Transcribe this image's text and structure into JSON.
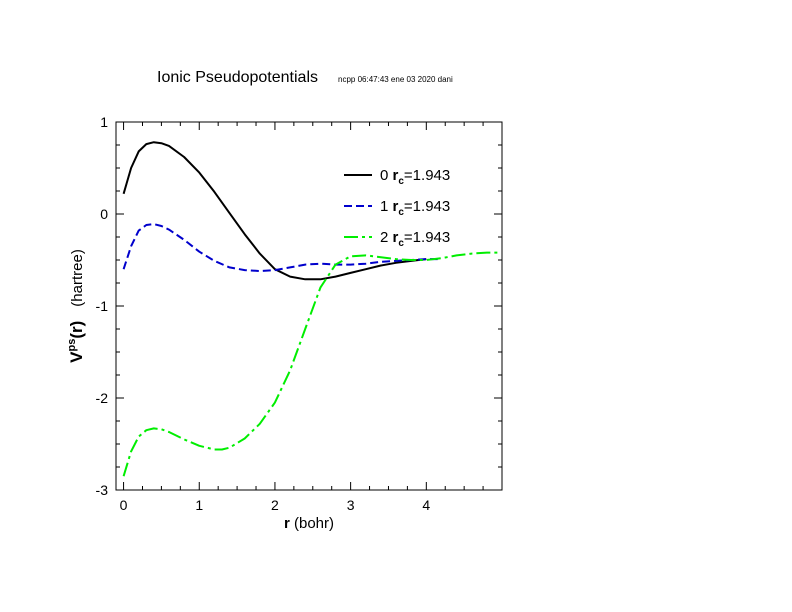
{
  "chart_data": {
    "type": "line",
    "title": "Ionic Pseudopotentials",
    "subtitle": "ncpp 06:47:43 ene 03 2020 dani",
    "xlabel": {
      "bold": "r",
      "rest": " (bohr)"
    },
    "ylabel": {
      "main": "V",
      "sup": "ps",
      "arg": "(r)",
      "unit": "(hartree)"
    },
    "xlim": [
      -0.1,
      5.0
    ],
    "ylim": [
      -3,
      1
    ],
    "xticks": [
      {
        "value": 0,
        "label": "0"
      },
      {
        "value": 1,
        "label": "1"
      },
      {
        "value": 2,
        "label": "2"
      },
      {
        "value": 3,
        "label": "3"
      },
      {
        "value": 4,
        "label": "4"
      }
    ],
    "yticks": [
      {
        "value": 1,
        "label": "1"
      },
      {
        "value": 0,
        "label": "0"
      },
      {
        "value": -1,
        "label": "-1"
      },
      {
        "value": -2,
        "label": "-2"
      },
      {
        "value": -3,
        "label": "-3"
      }
    ],
    "legend_position": "top-right",
    "series": [
      {
        "name": "0",
        "legend_r": "r",
        "legend_sub": "c",
        "legend_val": "=1.943",
        "color": "#000000",
        "dash": "",
        "x": [
          0.0,
          0.1,
          0.2,
          0.3,
          0.4,
          0.5,
          0.6,
          0.8,
          1.0,
          1.2,
          1.4,
          1.6,
          1.8,
          2.0,
          2.2,
          2.4,
          2.6,
          2.8,
          3.0,
          3.2,
          3.4,
          3.6,
          3.8,
          4.0
        ],
        "y": [
          0.22,
          0.5,
          0.68,
          0.76,
          0.78,
          0.77,
          0.74,
          0.62,
          0.45,
          0.24,
          0.01,
          -0.22,
          -0.43,
          -0.6,
          -0.68,
          -0.71,
          -0.71,
          -0.68,
          -0.64,
          -0.6,
          -0.56,
          -0.53,
          -0.51,
          -0.49
        ]
      },
      {
        "name": "1",
        "legend_r": "r",
        "legend_sub": "c",
        "legend_val": "=1.943",
        "color": "#0000cc",
        "dash": "8,4",
        "x": [
          0.0,
          0.1,
          0.2,
          0.3,
          0.4,
          0.5,
          0.6,
          0.8,
          1.0,
          1.2,
          1.4,
          1.6,
          1.8,
          2.0,
          2.2,
          2.4,
          2.6,
          2.8,
          3.0,
          3.2,
          3.4,
          3.6,
          3.8,
          4.0,
          4.15
        ],
        "y": [
          -0.6,
          -0.35,
          -0.18,
          -0.12,
          -0.11,
          -0.13,
          -0.17,
          -0.28,
          -0.41,
          -0.51,
          -0.58,
          -0.61,
          -0.62,
          -0.61,
          -0.58,
          -0.55,
          -0.54,
          -0.55,
          -0.55,
          -0.54,
          -0.52,
          -0.51,
          -0.5,
          -0.49,
          -0.49
        ]
      },
      {
        "name": "2",
        "legend_r": "r",
        "legend_sub": "c",
        "legend_val": "=1.943",
        "color": "#00ee00",
        "dash": "14,4,3,4",
        "x": [
          0.0,
          0.1,
          0.2,
          0.3,
          0.4,
          0.5,
          0.6,
          0.8,
          1.0,
          1.2,
          1.3,
          1.4,
          1.6,
          1.8,
          2.0,
          2.2,
          2.4,
          2.6,
          2.8,
          3.0,
          3.2,
          3.4,
          3.6,
          3.8,
          4.0,
          4.2,
          4.4,
          4.6,
          4.8,
          4.95
        ],
        "y": [
          -2.85,
          -2.58,
          -2.42,
          -2.35,
          -2.33,
          -2.34,
          -2.37,
          -2.45,
          -2.52,
          -2.56,
          -2.56,
          -2.54,
          -2.44,
          -2.28,
          -2.05,
          -1.7,
          -1.25,
          -0.8,
          -0.55,
          -0.46,
          -0.45,
          -0.47,
          -0.49,
          -0.5,
          -0.5,
          -0.48,
          -0.45,
          -0.43,
          -0.42,
          -0.42
        ]
      }
    ]
  }
}
